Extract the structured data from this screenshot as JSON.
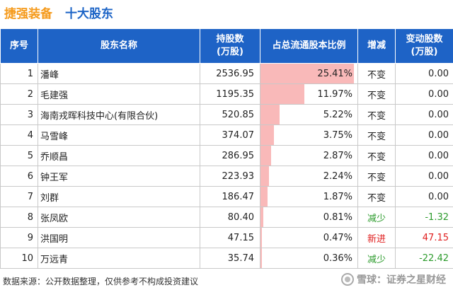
{
  "header": {
    "company": "捷强装备",
    "subtitle": "十大股东"
  },
  "table": {
    "columns": [
      "序号",
      "股东名称",
      "持股数\n(万股)",
      "占总流通股本比例",
      "增减",
      "变动股数\n(万股)"
    ],
    "rows": [
      {
        "seq": "1",
        "name": "潘峰",
        "shares": "2536.95",
        "ratio": "25.41%",
        "ratio_value": 25.41,
        "change": "不变",
        "change_type": "same",
        "delta": "0.00",
        "delta_type": "same"
      },
      {
        "seq": "2",
        "name": "毛建强",
        "shares": "1195.35",
        "ratio": "11.97%",
        "ratio_value": 11.97,
        "change": "不变",
        "change_type": "same",
        "delta": "0.00",
        "delta_type": "same"
      },
      {
        "seq": "3",
        "name": "海南戎晖科技中心(有限合伙)",
        "shares": "520.85",
        "ratio": "5.22%",
        "ratio_value": 5.22,
        "change": "不变",
        "change_type": "same",
        "delta": "0.00",
        "delta_type": "same"
      },
      {
        "seq": "4",
        "name": "马雪峰",
        "shares": "374.07",
        "ratio": "3.75%",
        "ratio_value": 3.75,
        "change": "不变",
        "change_type": "same",
        "delta": "0.00",
        "delta_type": "same"
      },
      {
        "seq": "5",
        "name": "乔顺昌",
        "shares": "286.95",
        "ratio": "2.87%",
        "ratio_value": 2.87,
        "change": "不变",
        "change_type": "same",
        "delta": "0.00",
        "delta_type": "same"
      },
      {
        "seq": "6",
        "name": "钟王军",
        "shares": "223.93",
        "ratio": "2.24%",
        "ratio_value": 2.24,
        "change": "不变",
        "change_type": "same",
        "delta": "0.00",
        "delta_type": "same"
      },
      {
        "seq": "7",
        "name": "刘群",
        "shares": "186.47",
        "ratio": "1.87%",
        "ratio_value": 1.87,
        "change": "不变",
        "change_type": "same",
        "delta": "0.00",
        "delta_type": "same"
      },
      {
        "seq": "8",
        "name": "张凤欧",
        "shares": "80.40",
        "ratio": "0.81%",
        "ratio_value": 0.81,
        "change": "减少",
        "change_type": "down",
        "delta": "-1.32",
        "delta_type": "down"
      },
      {
        "seq": "9",
        "name": "洪国明",
        "shares": "47.15",
        "ratio": "0.47%",
        "ratio_value": 0.47,
        "change": "新进",
        "change_type": "up",
        "delta": "47.15",
        "delta_type": "up"
      },
      {
        "seq": "10",
        "name": "万远青",
        "shares": "35.74",
        "ratio": "0.36%",
        "ratio_value": 0.36,
        "change": "减少",
        "change_type": "down",
        "delta": "-22.42",
        "delta_type": "down"
      }
    ]
  },
  "footer": {
    "source": "数据来源：公开数据整理，仅供参考不构成投资建议"
  },
  "brand": {
    "text": "雪球：证券之星财经",
    "icon": "snowball-logo-icon"
  },
  "colors": {
    "header_bg": "#1e63c6",
    "company": "#f59a1b",
    "subtitle": "#1b63c6",
    "bar": "#f9b9b9",
    "down": "#2c9b2c",
    "up": "#e02020"
  }
}
